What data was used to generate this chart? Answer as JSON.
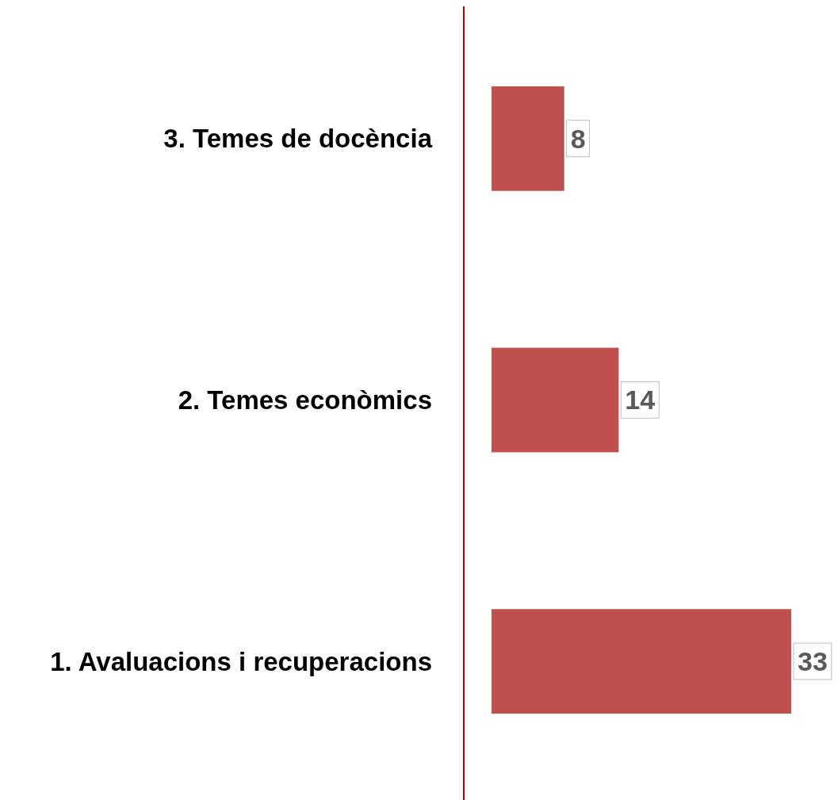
{
  "chart_data": {
    "type": "bar",
    "orientation": "horizontal",
    "categories": [
      "3. Temes de docència",
      "2. Temes econòmics",
      "1. Avaluacions i recuperacions"
    ],
    "values": [
      8,
      14,
      33
    ],
    "color": "#c0504d",
    "data_labels": true
  }
}
